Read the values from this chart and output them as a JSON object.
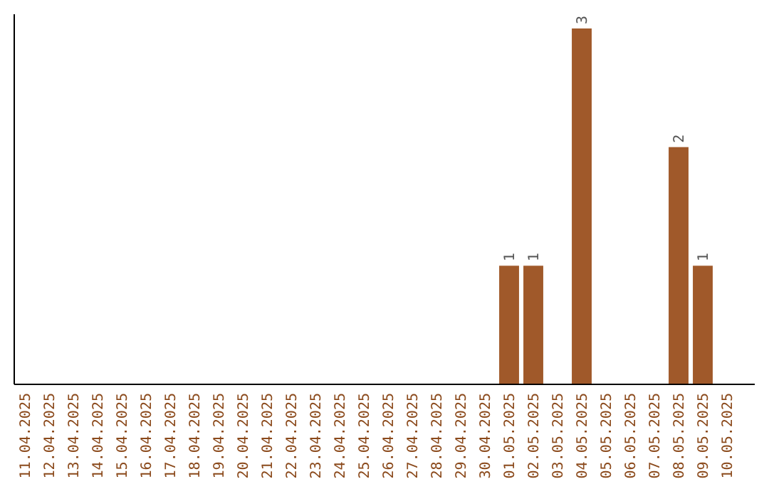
{
  "chart_data": {
    "type": "bar",
    "categories": [
      "11.04.2025",
      "12.04.2025",
      "13.04.2025",
      "14.04.2025",
      "15.04.2025",
      "16.04.2025",
      "17.04.2025",
      "18.04.2025",
      "19.04.2025",
      "20.04.2025",
      "21.04.2025",
      "22.04.2025",
      "23.04.2025",
      "24.04.2025",
      "25.04.2025",
      "26.04.2025",
      "27.04.2025",
      "28.04.2025",
      "29.04.2025",
      "30.04.2025",
      "01.05.2025",
      "02.05.2025",
      "03.05.2025",
      "04.05.2025",
      "05.05.2025",
      "06.05.2025",
      "07.05.2025",
      "08.05.2025",
      "09.05.2025",
      "10.05.2025"
    ],
    "values": [
      null,
      null,
      null,
      null,
      null,
      null,
      null,
      null,
      null,
      null,
      null,
      null,
      null,
      null,
      null,
      null,
      null,
      null,
      null,
      null,
      1,
      1,
      null,
      3,
      null,
      null,
      null,
      2,
      1,
      null
    ],
    "data_labels": true,
    "color": "#a0592a",
    "tick_labels": "x"
  }
}
